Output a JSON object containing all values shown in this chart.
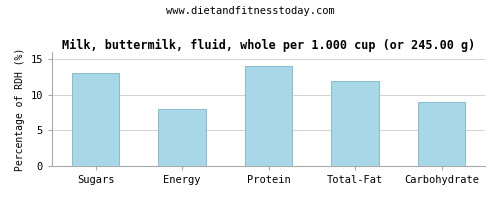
{
  "title": "Milk, buttermilk, fluid, whole per 1.000 cup (or 245.00 g)",
  "subtitle": "www.dietandfitnesstoday.com",
  "categories": [
    "Sugars",
    "Energy",
    "Protein",
    "Total-Fat",
    "Carbohydrate"
  ],
  "values": [
    13.0,
    8.0,
    14.0,
    12.0,
    9.0
  ],
  "bar_color": "#a8d8e8",
  "bar_edge_color": "#88bcd0",
  "ylabel": "Percentage of RDH (%)",
  "ylim": [
    0,
    16
  ],
  "yticks": [
    0,
    5,
    10,
    15
  ],
  "background_color": "#ffffff",
  "plot_bg_color": "#ffffff",
  "grid_color": "#cccccc",
  "title_fontsize": 8.5,
  "subtitle_fontsize": 7.5,
  "axis_label_fontsize": 7,
  "tick_fontsize": 7.5,
  "font_family": "monospace",
  "bar_width": 0.55
}
